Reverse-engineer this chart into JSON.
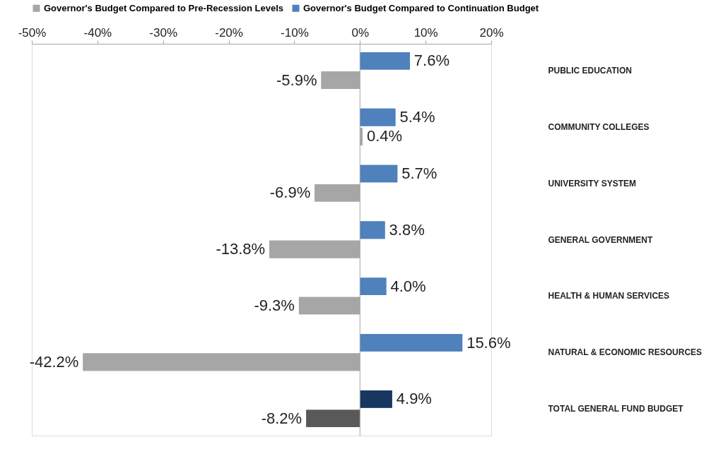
{
  "chart_data": {
    "type": "bar",
    "orientation": "horizontal",
    "categories": [
      "PUBLIC EDUCATION",
      "COMMUNITY COLLEGES",
      "UNIVERSITY SYSTEM",
      "GENERAL GOVERNMENT",
      "HEALTH & HUMAN SERVICES",
      "NATURAL & ECONOMIC RESOURCES",
      "TOTAL GENERAL FUND BUDGET"
    ],
    "series": [
      {
        "name": "Governor's Budget Compared to Continuation Budget",
        "color": "#4f81bd",
        "colors": [
          "#4f81bd",
          "#4f81bd",
          "#4f81bd",
          "#4f81bd",
          "#4f81bd",
          "#4f81bd",
          "#17375e"
        ],
        "values": [
          7.6,
          5.4,
          5.7,
          3.8,
          4.0,
          15.6,
          4.9
        ],
        "value_labels": [
          "7.6%",
          "5.4%",
          "5.7%",
          "3.8%",
          "4.0%",
          "15.6%",
          "4.9%"
        ]
      },
      {
        "name": "Governor's Budget Compared to Pre-Recession Levels",
        "color": "#a6a6a6",
        "colors": [
          "#a6a6a6",
          "#a6a6a6",
          "#a6a6a6",
          "#a6a6a6",
          "#a6a6a6",
          "#a6a6a6",
          "#595959"
        ],
        "values": [
          -5.9,
          0.4,
          -6.9,
          -13.8,
          -9.3,
          -42.2,
          -8.2
        ],
        "value_labels": [
          "-5.9%",
          "0.4%",
          "-6.9%",
          "-13.8%",
          "-9.3%",
          "-42.2%",
          "-8.2%"
        ]
      }
    ],
    "xlim": [
      -50,
      20
    ],
    "xticks": [
      {
        "value": -50,
        "label": "-50%"
      },
      {
        "value": -40,
        "label": "-40%"
      },
      {
        "value": -30,
        "label": "-30%"
      },
      {
        "value": -20,
        "label": "-20%"
      },
      {
        "value": -10,
        "label": "-10%"
      },
      {
        "value": 0,
        "label": "0%"
      },
      {
        "value": 10,
        "label": "10%"
      },
      {
        "value": 20,
        "label": "20%"
      }
    ],
    "ref_lines": [
      {
        "axis": "x",
        "value": 0,
        "color": "#a6a6a6"
      }
    ],
    "legend": "top",
    "grid": false
  }
}
